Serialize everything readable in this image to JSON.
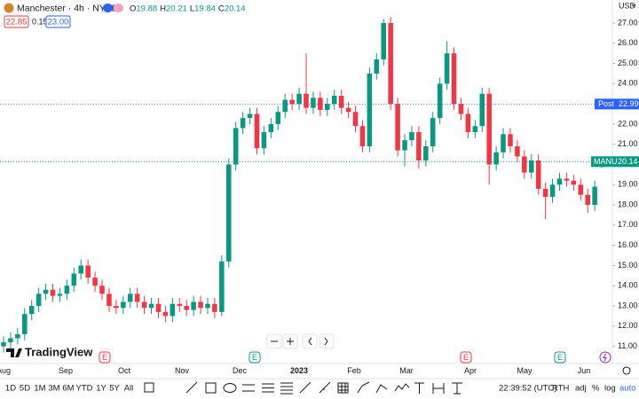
{
  "ui": {
    "symbol": "Manchester · 4h · NYSE",
    "currency": "USD",
    "bid": "22.85",
    "spread": "0.15",
    "ask": "23.00",
    "ohlc_labels": [
      "O",
      "H",
      "L",
      "C"
    ],
    "post_label": "Post",
    "ticker_label": "MANU",
    "brand": "TradingView",
    "events": [
      "E",
      "E",
      "E",
      "E"
    ],
    "periods": [
      "1D",
      "5D",
      "1M",
      "3M",
      "6M",
      "YTD",
      "1Y",
      "5Y",
      "All"
    ],
    "clock": "22:39:52 (UTC)",
    "session": "RTH",
    "adj": "adj",
    "percent": "%",
    "log": "log",
    "auto": "auto"
  },
  "chart_data": {
    "type": "candlestick",
    "up_color": "#089981",
    "down_color": "#f23645",
    "x_labels": [
      "Aug",
      "Sep",
      "Oct",
      "Nov",
      "Dec",
      "2023",
      "Feb",
      "Mar",
      "Apr",
      "May",
      "Jun"
    ],
    "ylim": [
      10.5,
      28.14
    ],
    "yticks": [
      {
        "value": 11,
        "label": "11.00"
      },
      {
        "value": 12,
        "label": "12.00"
      },
      {
        "value": 13,
        "label": "13.00"
      },
      {
        "value": 14,
        "label": "14.00"
      },
      {
        "value": 15,
        "label": "15.00"
      },
      {
        "value": 16,
        "label": "16.00"
      },
      {
        "value": 17,
        "label": "17.00"
      },
      {
        "value": 18,
        "label": "18.00"
      },
      {
        "value": 19,
        "label": "19.00"
      },
      {
        "value": 20,
        "label": "20.00"
      },
      {
        "value": 21,
        "label": "21.00"
      },
      {
        "value": 22,
        "label": "22.00"
      },
      {
        "value": 23,
        "label": "23.00"
      },
      {
        "value": 24,
        "label": "24.00"
      },
      {
        "value": 25,
        "label": "25.00"
      },
      {
        "value": 26,
        "label": "26.00"
      },
      {
        "value": 27,
        "label": "27.00"
      }
    ],
    "post_price": 22.99,
    "open": [
      11.0,
      11.2,
      11.4,
      11.6,
      12.6,
      13.0,
      13.6,
      13.8,
      13.5,
      13.6,
      14.0,
      14.6,
      15.0,
      14.4,
      14.0,
      13.6,
      13.0,
      12.9,
      13.2,
      13.6,
      13.2,
      12.9,
      13.1,
      12.7,
      12.5,
      13.1,
      13.0,
      12.8,
      13.2,
      12.9,
      13.1,
      12.7,
      15.2,
      20.0,
      21.8,
      22.3,
      22.5,
      20.8,
      21.6,
      22.0,
      22.6,
      23.2,
      23.0,
      23.5,
      22.8,
      23.3,
      22.7,
      23.0,
      23.4,
      22.8,
      22.6,
      21.9,
      20.9,
      24.5,
      25.2,
      27.0,
      23.0,
      20.7,
      21.2,
      21.6,
      20.2,
      20.9,
      22.3,
      24.0,
      25.5,
      23.0,
      22.5,
      21.6,
      21.9,
      23.5,
      20.0,
      20.6,
      21.5,
      20.9,
      20.4,
      19.6,
      20.2,
      18.8,
      18.4,
      19.0,
      19.3,
      19.2,
      19.0,
      18.5,
      18.0,
      19.88
    ],
    "high": [
      11.5,
      11.7,
      11.9,
      12.9,
      13.3,
      13.9,
      14.1,
      14.1,
      13.9,
      14.3,
      14.9,
      15.3,
      15.3,
      14.7,
      14.3,
      13.9,
      13.3,
      13.5,
      13.9,
      13.9,
      13.5,
      13.4,
      13.4,
      13.0,
      13.4,
      13.4,
      13.3,
      13.5,
      13.5,
      13.4,
      13.4,
      15.5,
      20.3,
      22.1,
      22.6,
      22.8,
      22.8,
      21.9,
      22.3,
      22.9,
      23.5,
      23.5,
      23.8,
      25.5,
      23.6,
      23.6,
      23.3,
      23.7,
      23.7,
      23.1,
      22.9,
      22.2,
      24.8,
      25.5,
      27.2,
      27.3,
      23.3,
      21.5,
      21.9,
      21.9,
      21.2,
      22.6,
      24.3,
      26.1,
      25.8,
      23.3,
      22.8,
      22.2,
      23.8,
      23.8,
      20.9,
      21.8,
      21.8,
      21.2,
      20.7,
      20.5,
      20.5,
      19.1,
      19.3,
      19.6,
      19.6,
      19.5,
      19.3,
      18.8,
      19.2,
      20.21
    ],
    "low": [
      10.7,
      10.9,
      11.1,
      11.3,
      12.3,
      12.7,
      13.3,
      13.2,
      13.2,
      13.3,
      13.7,
      14.3,
      14.1,
      13.7,
      13.3,
      12.7,
      12.6,
      12.6,
      12.9,
      12.9,
      12.6,
      12.6,
      12.4,
      12.2,
      12.2,
      12.7,
      12.5,
      12.5,
      12.6,
      12.6,
      12.4,
      12.5,
      14.9,
      19.7,
      21.5,
      22.0,
      20.5,
      20.5,
      21.3,
      21.7,
      22.3,
      22.7,
      22.7,
      22.5,
      22.5,
      22.4,
      22.4,
      22.7,
      22.5,
      22.3,
      21.6,
      20.6,
      20.6,
      24.2,
      24.9,
      22.7,
      20.4,
      19.9,
      20.9,
      19.8,
      19.9,
      20.6,
      22.0,
      23.7,
      22.7,
      22.2,
      21.3,
      21.3,
      21.6,
      19.0,
      19.7,
      20.3,
      20.6,
      20.1,
      19.3,
      19.3,
      18.5,
      17.3,
      18.1,
      18.7,
      18.9,
      18.7,
      18.2,
      17.6,
      17.7,
      19.84
    ],
    "close": [
      11.2,
      11.4,
      11.6,
      12.6,
      13.0,
      13.6,
      13.8,
      13.5,
      13.6,
      14.0,
      14.6,
      15.0,
      14.4,
      14.0,
      13.6,
      13.0,
      12.9,
      13.2,
      13.6,
      13.2,
      12.9,
      13.1,
      12.7,
      12.5,
      13.1,
      13.0,
      12.8,
      13.2,
      12.9,
      13.1,
      12.7,
      15.2,
      20.0,
      21.8,
      22.3,
      22.5,
      20.8,
      21.6,
      22.0,
      22.6,
      23.2,
      23.0,
      23.5,
      22.8,
      23.3,
      22.7,
      23.0,
      23.4,
      22.8,
      22.6,
      21.9,
      20.9,
      24.5,
      25.2,
      27.0,
      23.0,
      20.7,
      21.2,
      21.6,
      20.2,
      20.9,
      22.3,
      24.0,
      25.5,
      23.0,
      22.5,
      21.6,
      21.9,
      23.5,
      20.0,
      20.6,
      21.5,
      20.9,
      20.4,
      19.6,
      20.2,
      18.8,
      18.4,
      19.0,
      19.3,
      19.2,
      19.0,
      18.5,
      18.0,
      18.9,
      20.14
    ]
  }
}
